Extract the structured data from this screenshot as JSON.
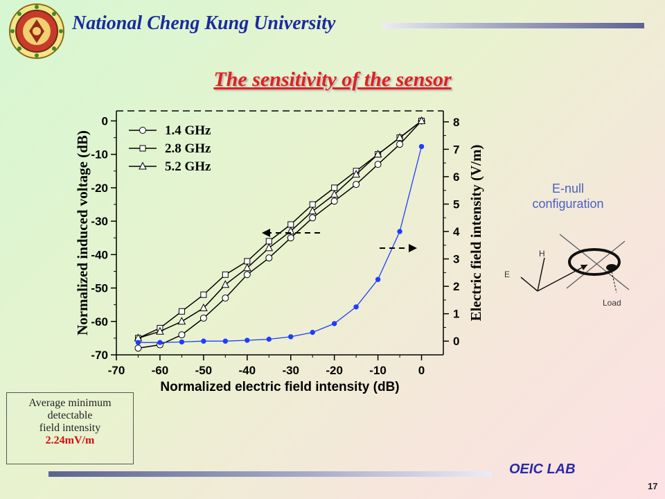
{
  "header": {
    "university": "National Cheng Kung University"
  },
  "slide": {
    "title": "The sensitivity of the sensor",
    "page_number": "17",
    "footer_lab": "OEIC LAB"
  },
  "diagram": {
    "caption": "E-null\nconfiguration",
    "label_h": "H",
    "label_e": "E",
    "label_load": "Load"
  },
  "infobox": {
    "line1": "Average minimum",
    "line2": "detectable",
    "line3": "field intensity",
    "value": "2.24mV/m"
  },
  "colors": {
    "title": "#e02020",
    "university": "#1a2aa0",
    "blue_series": "#1e3cff",
    "caption": "#4a5fc4"
  },
  "chart_data": {
    "type": "line",
    "xlabel": "Normalized electric field intensity (dB)",
    "ylabel_left": "Normalized induced voltage (dB)",
    "ylabel_right": "Electric field intensity (V/m)",
    "xlim": [
      -70,
      5
    ],
    "ylim_left": [
      -70,
      3
    ],
    "ylim_right": [
      -0.5,
      8.4
    ],
    "x_ticks": [
      -70,
      -60,
      -50,
      -40,
      -30,
      -20,
      -10,
      0
    ],
    "y_left_ticks": [
      0,
      -10,
      -20,
      -30,
      -40,
      -50,
      -60,
      -70
    ],
    "y_right_ticks": [
      0,
      1,
      2,
      3,
      4,
      5,
      6,
      7,
      8
    ],
    "legend_position": "top-left",
    "series": [
      {
        "name": "1.4 GHz",
        "marker": "circle",
        "axis": "left",
        "x": [
          -65,
          -60,
          -55,
          -50,
          -45,
          -40,
          -35,
          -30,
          -25,
          -20,
          -15,
          -10,
          -5,
          0
        ],
        "y": [
          -68,
          -67,
          -64,
          -59,
          -53,
          -46,
          -41,
          -35,
          -29,
          -24,
          -19,
          -13,
          -7,
          0
        ]
      },
      {
        "name": "2.8 GHz",
        "marker": "square",
        "axis": "left",
        "x": [
          -65,
          -60,
          -55,
          -50,
          -45,
          -40,
          -35,
          -30,
          -25,
          -20,
          -15,
          -10,
          -5,
          0
        ],
        "y": [
          -65,
          -62,
          -57,
          -52,
          -46,
          -42,
          -36,
          -31,
          -25,
          -20,
          -15,
          -10,
          -5,
          0
        ]
      },
      {
        "name": "5.2 GHz",
        "marker": "triangle",
        "axis": "left",
        "x": [
          -65,
          -60,
          -55,
          -50,
          -45,
          -40,
          -35,
          -30,
          -25,
          -20,
          -15,
          -10,
          -5,
          0
        ],
        "y": [
          -65,
          -63,
          -60,
          -56,
          -49,
          -44,
          -38,
          -33,
          -27,
          -22,
          -16,
          -10,
          -5,
          0
        ]
      },
      {
        "marker": "filled-circle",
        "axis": "right",
        "x": [
          -65,
          -60,
          -55,
          -50,
          -45,
          -40,
          -35,
          -30,
          -25,
          -20,
          -15,
          -10,
          -5,
          0
        ],
        "y": [
          -0.05,
          -0.05,
          -0.03,
          0.0,
          0.0,
          0.03,
          0.07,
          0.16,
          0.32,
          0.64,
          1.25,
          2.25,
          4.0,
          7.1
        ]
      }
    ]
  }
}
